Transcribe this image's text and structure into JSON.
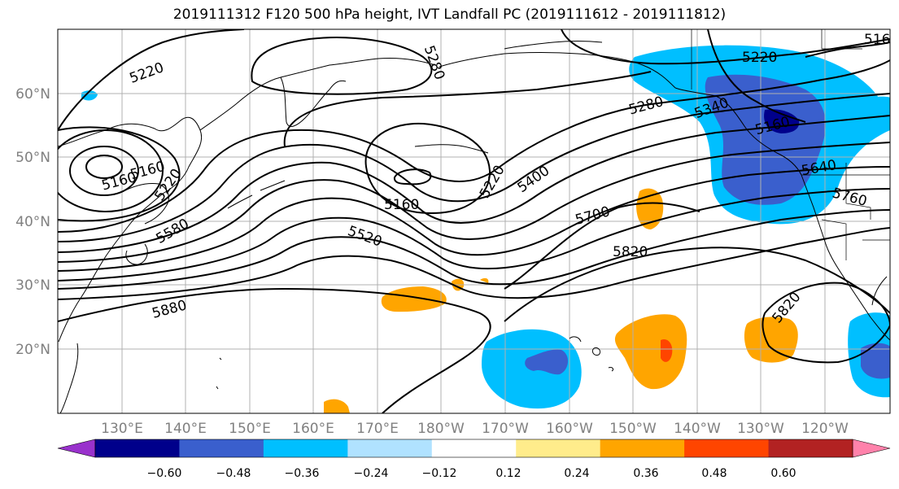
{
  "title": "2019111312 F120 500 hPa height, IVT Landfall PC (2019111612 - 2019111812)",
  "lat_labels": [
    "60°N",
    "50°N",
    "40°N",
    "30°N",
    "20°N"
  ],
  "lon_labels": [
    "130°E",
    "140°E",
    "150°E",
    "160°E",
    "170°E",
    "180°W",
    "170°W",
    "160°W",
    "150°W",
    "140°W",
    "130°W",
    "120°W"
  ],
  "contour_labels": [
    "5220",
    "5280",
    "5160",
    "5160",
    "5220",
    "5580",
    "5160",
    "5220",
    "5400",
    "5520",
    "5700",
    "5820",
    "5880",
    "5280",
    "5340",
    "5220",
    "5160",
    "5640",
    "5760",
    "5820",
    "516"
  ],
  "colorbar": {
    "ticks": [
      "−0.60",
      "−0.48",
      "−0.36",
      "−0.24",
      "−0.12",
      "0.12",
      "0.24",
      "0.36",
      "0.48",
      "0.60"
    ],
    "colors": [
      "#9932cc",
      "#00008b",
      "#3a5fcd",
      "#00bfff",
      "#b0e2ff",
      "#ffffff",
      "#ffec8b",
      "#ffa500",
      "#ff4500",
      "#b22222",
      "#ff82ab"
    ]
  }
}
